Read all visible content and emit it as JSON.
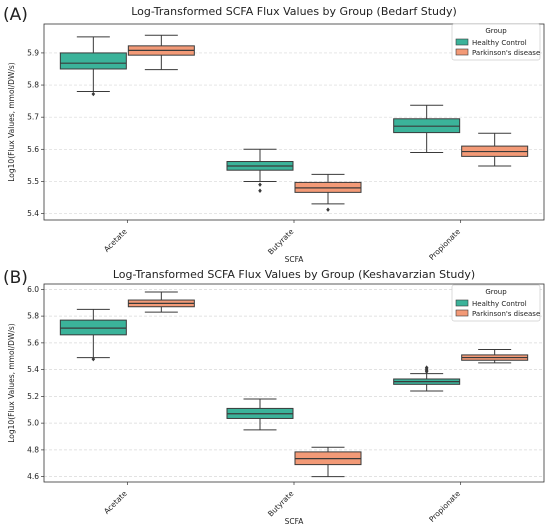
{
  "panels": [
    {
      "label": "(A)"
    },
    {
      "label": "(B)"
    }
  ],
  "colors": {
    "healthy": "#3bb39a",
    "parkinsons": "#f39a77",
    "grid": "#d8d8d8",
    "line": "#3a3a3a"
  },
  "chart_data": [
    {
      "type": "box",
      "title": "Log-Transformed SCFA Flux Values by Group (Bedarf Study)",
      "xlabel": "SCFA",
      "ylabel": "Log10(Flux Values, mmol/DW/s)",
      "categories": [
        "Acetate",
        "Butyrate",
        "Propionate"
      ],
      "ylim": [
        5.38,
        5.99
      ],
      "yticks": [
        5.4,
        5.5,
        5.6,
        5.7,
        5.8,
        5.9
      ],
      "ytick_labels": [
        "5.4",
        "5.5",
        "5.6",
        "5.7",
        "5.8",
        "5.9"
      ],
      "grid": "horizontal dashed",
      "legend": {
        "title": "Group",
        "position": "top-right",
        "entries": [
          "Healthy Control",
          "Parkinson's disease"
        ]
      },
      "series": [
        {
          "name": "Healthy Control",
          "boxes": [
            {
              "min": 5.78,
              "q1": 5.85,
              "median": 5.868,
              "q3": 5.9,
              "max": 5.95,
              "outliers": [
                5.772
              ]
            },
            {
              "min": 5.5,
              "q1": 5.535,
              "median": 5.548,
              "q3": 5.562,
              "max": 5.6,
              "outliers": [
                5.49,
                5.471
              ]
            },
            {
              "min": 5.59,
              "q1": 5.652,
              "median": 5.672,
              "q3": 5.695,
              "max": 5.737,
              "outliers": []
            }
          ]
        },
        {
          "name": "Parkinson's disease",
          "boxes": [
            {
              "min": 5.848,
              "q1": 5.893,
              "median": 5.908,
              "q3": 5.922,
              "max": 5.955,
              "outliers": []
            },
            {
              "min": 5.43,
              "q1": 5.466,
              "median": 5.48,
              "q3": 5.497,
              "max": 5.522,
              "outliers": [
                5.412
              ]
            },
            {
              "min": 5.548,
              "q1": 5.578,
              "median": 5.593,
              "q3": 5.61,
              "max": 5.65,
              "outliers": []
            }
          ]
        }
      ]
    },
    {
      "type": "box",
      "title": "Log-Transformed SCFA Flux Values by Group (Keshavarzian Study)",
      "xlabel": "SCFA",
      "ylabel": "Log10(Flux Values, mmol/DW/s)",
      "categories": [
        "Acetate",
        "Butyrate",
        "Propionate"
      ],
      "ylim": [
        4.56,
        6.04
      ],
      "yticks": [
        4.6,
        4.8,
        5.0,
        5.2,
        5.4,
        5.6,
        5.8,
        6.0
      ],
      "ytick_labels": [
        "4.6",
        "4.8",
        "5.0",
        "5.2",
        "5.4",
        "5.6",
        "5.8",
        "6.0"
      ],
      "grid": "horizontal dashed",
      "legend": {
        "title": "Group",
        "position": "top-right",
        "entries": [
          "Healthy Control",
          "Parkinson's disease"
        ]
      },
      "series": [
        {
          "name": "Healthy Control",
          "boxes": [
            {
              "min": 5.49,
              "q1": 5.66,
              "median": 5.71,
              "q3": 5.77,
              "max": 5.85,
              "outliers": [
                5.478
              ]
            },
            {
              "min": 4.95,
              "q1": 5.035,
              "median": 5.07,
              "q3": 5.11,
              "max": 5.18,
              "outliers": []
            },
            {
              "min": 5.24,
              "q1": 5.29,
              "median": 5.31,
              "q3": 5.33,
              "max": 5.37,
              "outliers": [
                5.385,
                5.395,
                5.405,
                5.415
              ]
            }
          ]
        },
        {
          "name": "Parkinson's disease",
          "boxes": [
            {
              "min": 5.83,
              "q1": 5.87,
              "median": 5.895,
              "q3": 5.92,
              "max": 5.98,
              "outliers": []
            },
            {
              "min": 4.6,
              "q1": 4.69,
              "median": 4.735,
              "q3": 4.785,
              "max": 4.82,
              "outliers": []
            },
            {
              "min": 5.45,
              "q1": 5.47,
              "median": 5.49,
              "q3": 5.51,
              "max": 5.55,
              "outliers": []
            }
          ]
        }
      ]
    }
  ]
}
